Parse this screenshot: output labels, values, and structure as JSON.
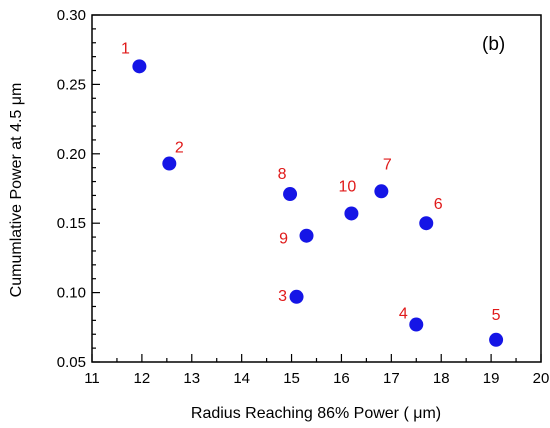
{
  "chart_data": {
    "type": "scatter",
    "panel_label": "(b)",
    "xlabel": "Radius Reaching 86% Power ( μm)",
    "ylabel": "Cumumlative Power at 4.5  μm",
    "xlim": [
      11,
      20
    ],
    "ylim": [
      0.05,
      0.3
    ],
    "x_ticks": [
      11,
      12,
      13,
      14,
      15,
      16,
      17,
      18,
      19,
      20
    ],
    "y_ticks": [
      0.05,
      0.1,
      0.15,
      0.2,
      0.25,
      0.3
    ],
    "x_tick_labels": [
      "11",
      "12",
      "13",
      "14",
      "15",
      "16",
      "17",
      "18",
      "19",
      "20"
    ],
    "y_tick_labels": [
      "0.05",
      "0.10",
      "0.15",
      "0.20",
      "0.25",
      "0.30"
    ],
    "grid": false,
    "point_color": "#1515e6",
    "label_color": "#e01a1a",
    "points": [
      {
        "label": "1",
        "x": 11.95,
        "y": 0.263
      },
      {
        "label": "2",
        "x": 12.55,
        "y": 0.193
      },
      {
        "label": "3",
        "x": 15.1,
        "y": 0.097
      },
      {
        "label": "4",
        "x": 17.5,
        "y": 0.077
      },
      {
        "label": "5",
        "x": 19.1,
        "y": 0.066
      },
      {
        "label": "6",
        "x": 17.7,
        "y": 0.15
      },
      {
        "label": "7",
        "x": 16.8,
        "y": 0.173
      },
      {
        "label": "8",
        "x": 14.97,
        "y": 0.171
      },
      {
        "label": "9",
        "x": 15.3,
        "y": 0.141
      },
      {
        "label": "10",
        "x": 16.2,
        "y": 0.157
      }
    ]
  }
}
